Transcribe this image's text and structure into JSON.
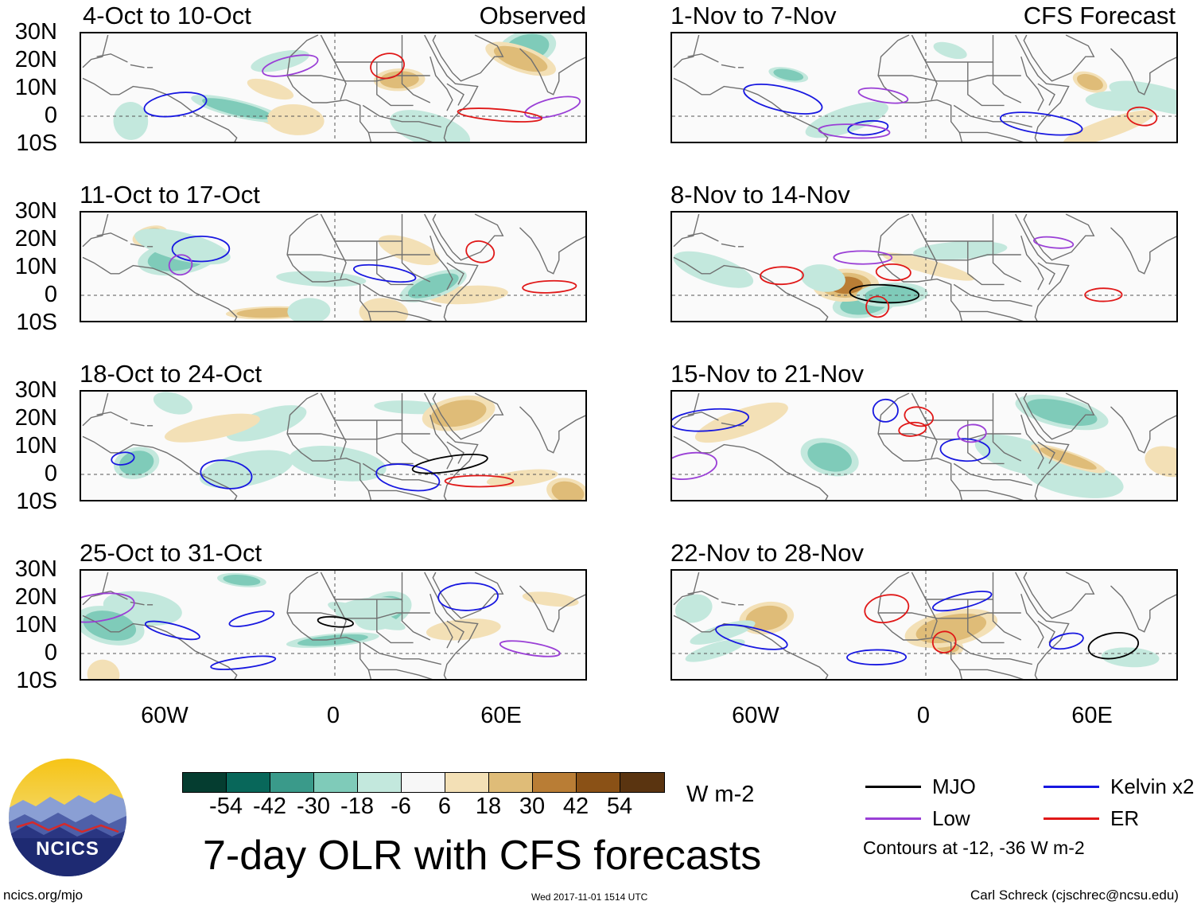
{
  "main_title": "7-day OLR with CFS forecasts",
  "observed_tag": "Observed",
  "forecast_tag": "CFS Forecast",
  "lat_labels": [
    "30N",
    "20N",
    "10N",
    "0",
    "10S"
  ],
  "lon_labels": [
    "60W",
    "0",
    "60E"
  ],
  "panels_left": [
    "4-Oct to 10-Oct",
    "11-Oct to 17-Oct",
    "18-Oct to 24-Oct",
    "25-Oct to 31-Oct"
  ],
  "panels_right": [
    "1-Nov to 7-Nov",
    "8-Nov to 14-Nov",
    "15-Nov to 21-Nov",
    "22-Nov to 28-Nov"
  ],
  "colorbar": {
    "units": "W m-2",
    "labels": [
      "-54",
      "-42",
      "-30",
      "-18",
      "-6",
      "6",
      "18",
      "30",
      "42",
      "54"
    ],
    "colors": [
      "#053d30",
      "#08675a",
      "#3a9a8a",
      "#7fcbb9",
      "#c3e8dd",
      "#f7f7f7",
      "#f3e0b6",
      "#dfbc78",
      "#b97d35",
      "#8a5116",
      "#5a3410"
    ]
  },
  "legend": {
    "mjo": "MJO",
    "kelvin": "Kelvin x2",
    "low": "Low",
    "er": "ER",
    "note": "Contours at -12, -36 W m-2",
    "colors": {
      "mjo": "#000000",
      "kelvin": "#1818e0",
      "low": "#9a3fd6",
      "er": "#e01818"
    }
  },
  "logo_text": "NCICS",
  "footer": {
    "url": "ncics.org/mjo",
    "timestamp": "Wed 2017-11-01 1514 UTC",
    "credit": "Carl Schreck (cjschrec@ncsu.edu)"
  }
}
